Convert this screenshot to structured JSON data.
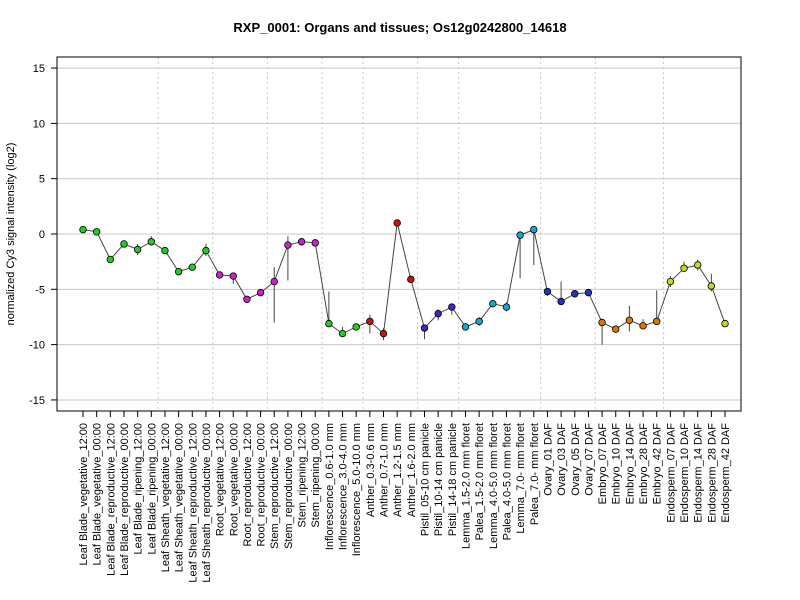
{
  "chart_data": {
    "type": "line",
    "title": "RXP_0001: Organs and tissues; Os12g0242800_14618",
    "ylabel": "normalized Cy3 signal intensity (log2)",
    "xlabel": "",
    "ylim": [
      -16,
      16
    ],
    "yticks": [
      -15,
      -10,
      -5,
      0,
      5,
      10,
      15
    ],
    "categories": [
      "Leaf Blade_vegetative_12:00",
      "Leaf Blade_vegetative_00:00",
      "Leaf Blade_reproductive_12:00",
      "Leaf Blade_reproductive_00:00",
      "Leaf Blade_ripening_12:00",
      "Leaf Blade_ripening_00:00",
      "Leaf Sheath_vegetative_12:00",
      "Leaf Sheath_vegetative_00:00",
      "Leaf Sheath_reproductive_12:00",
      "Leaf Sheath_reproductive_00:00",
      "Root_vegetative_12:00",
      "Root_vegetative_00:00",
      "Root_reproductive_12:00",
      "Root_reproductive_00:00",
      "Stem_reproductive_12:00",
      "Stem_reproductive_00:00",
      "Stem_ripening_12:00",
      "Stem_ripening_00:00",
      "Inflorescence_0.6-1.0 mm",
      "Inflorescence_3.0-4.0 mm",
      "Inflorescence_5.0-10.0 mm",
      "Anther_0.3-0.6 mm",
      "Anther_0.7-1.0 mm",
      "Anther_1.2-1.5 mm",
      "Anther_1.6-2.0 mm",
      "Pistil_05-10 cm panicle",
      "Pistil_10-14 cm panicle",
      "Pistil_14-18 cm panicle",
      "Lemma_1.5-2.0 mm floret",
      "Palea_1.5-2.0 mm floret",
      "Lemma_4.0-5.0 mm floret",
      "Palea_4.0-5.0 mm floret",
      "Lemma_7.0- mm floret",
      "Palea_7.0- mm floret",
      "Ovary_01 DAF",
      "Ovary_03 DAF",
      "Ovary_05 DAF",
      "Ovary_07 DAF",
      "Embryo_07 DAF",
      "Embryo_10 DAF",
      "Embryo_14 DAF",
      "Embryo_28 DAF",
      "Embryo_42 DAF",
      "Endosperm_07 DAF",
      "Endosperm_10 DAF",
      "Endosperm_14 DAF",
      "Endosperm_28 DAF",
      "Endosperm_42 DAF"
    ],
    "values": [
      0.4,
      0.2,
      -2.3,
      -0.9,
      -1.4,
      -0.7,
      -1.5,
      -3.4,
      -3.0,
      -1.5,
      -3.7,
      -3.8,
      -5.9,
      -5.3,
      -4.3,
      -1.0,
      -0.7,
      -0.8,
      -8.1,
      -9.0,
      -8.4,
      -7.9,
      -9.0,
      1.0,
      -4.1,
      -8.5,
      -7.2,
      -6.6,
      -8.4,
      -7.9,
      -6.3,
      -6.6,
      -0.1,
      0.4,
      -5.2,
      -6.1,
      -5.4,
      -5.3,
      -8.0,
      -8.6,
      -7.8,
      -8.3,
      -7.9,
      -4.3,
      -3.1,
      -2.8,
      -4.7,
      -8.1
    ],
    "error_low": [
      0.2,
      0.0,
      -2.4,
      -1.0,
      -1.9,
      -1.0,
      -1.7,
      -3.6,
      -3.2,
      -2.0,
      -3.9,
      -4.5,
      -6.0,
      -5.5,
      -8.0,
      -4.2,
      -0.9,
      -1.0,
      -8.3,
      -9.2,
      -8.6,
      -9.0,
      -9.6,
      0.9,
      -4.3,
      -9.5,
      -7.8,
      -7.3,
      -8.6,
      -8.3,
      -6.5,
      -7.0,
      -4.0,
      -2.8,
      -5.6,
      -6.3,
      -5.7,
      -5.5,
      -10.0,
      -8.9,
      -8.8,
      -8.4,
      -8.2,
      -4.8,
      -3.4,
      -3.3,
      -5.2,
      -8.3
    ],
    "error_high": [
      0.6,
      0.5,
      -2.2,
      -0.7,
      -0.9,
      -0.2,
      -1.2,
      -3.3,
      -2.8,
      -0.9,
      -3.5,
      -3.5,
      -5.8,
      -5.1,
      -3.0,
      -0.2,
      -0.4,
      -0.5,
      -5.2,
      -8.4,
      -8.2,
      -7.3,
      -8.5,
      1.2,
      -3.8,
      -8.2,
      -6.8,
      -6.3,
      -8.2,
      -7.5,
      -6.1,
      -6.2,
      0.2,
      0.6,
      -5.0,
      -4.3,
      -5.1,
      -5.1,
      -7.8,
      -8.3,
      -6.5,
      -7.7,
      -5.1,
      -3.8,
      -2.5,
      -2.3,
      -3.6,
      -7.9
    ],
    "group_colors": {
      "leaf_blade": "#22cc22",
      "leaf_sheath": "#22cc22",
      "root": "#cc22cc",
      "stem": "#cc22cc",
      "inflorescence": "#22cc22",
      "anther": "#cc1111",
      "pistil": "#4422cc",
      "lemma_palea": "#11aacc",
      "ovary": "#2233cc",
      "embryo": "#dd7700",
      "endosperm": "#bbdd22"
    },
    "point_colors": [
      "#22cc22",
      "#22cc22",
      "#22cc22",
      "#22cc22",
      "#22cc22",
      "#22cc22",
      "#22cc22",
      "#22cc22",
      "#22cc22",
      "#22cc22",
      "#cc22cc",
      "#cc22cc",
      "#cc22cc",
      "#cc22cc",
      "#cc22cc",
      "#cc22cc",
      "#cc22cc",
      "#cc22cc",
      "#22cc22",
      "#22cc22",
      "#22cc22",
      "#cc1111",
      "#cc1111",
      "#cc1111",
      "#cc1111",
      "#4422cc",
      "#4422cc",
      "#4422cc",
      "#11aacc",
      "#11aacc",
      "#11aacc",
      "#11aacc",
      "#11aacc",
      "#11aacc",
      "#2233cc",
      "#2233cc",
      "#2233cc",
      "#2233cc",
      "#dd7700",
      "#dd7700",
      "#dd7700",
      "#dd7700",
      "#dd7700",
      "#bbdd22",
      "#bbdd22",
      "#bbdd22",
      "#bbdd22",
      "#bbdd22"
    ],
    "group_boundaries_after_index": [
      5,
      9,
      13,
      17,
      20,
      24,
      27,
      33,
      37,
      42
    ],
    "grid": true,
    "legend": "none"
  }
}
